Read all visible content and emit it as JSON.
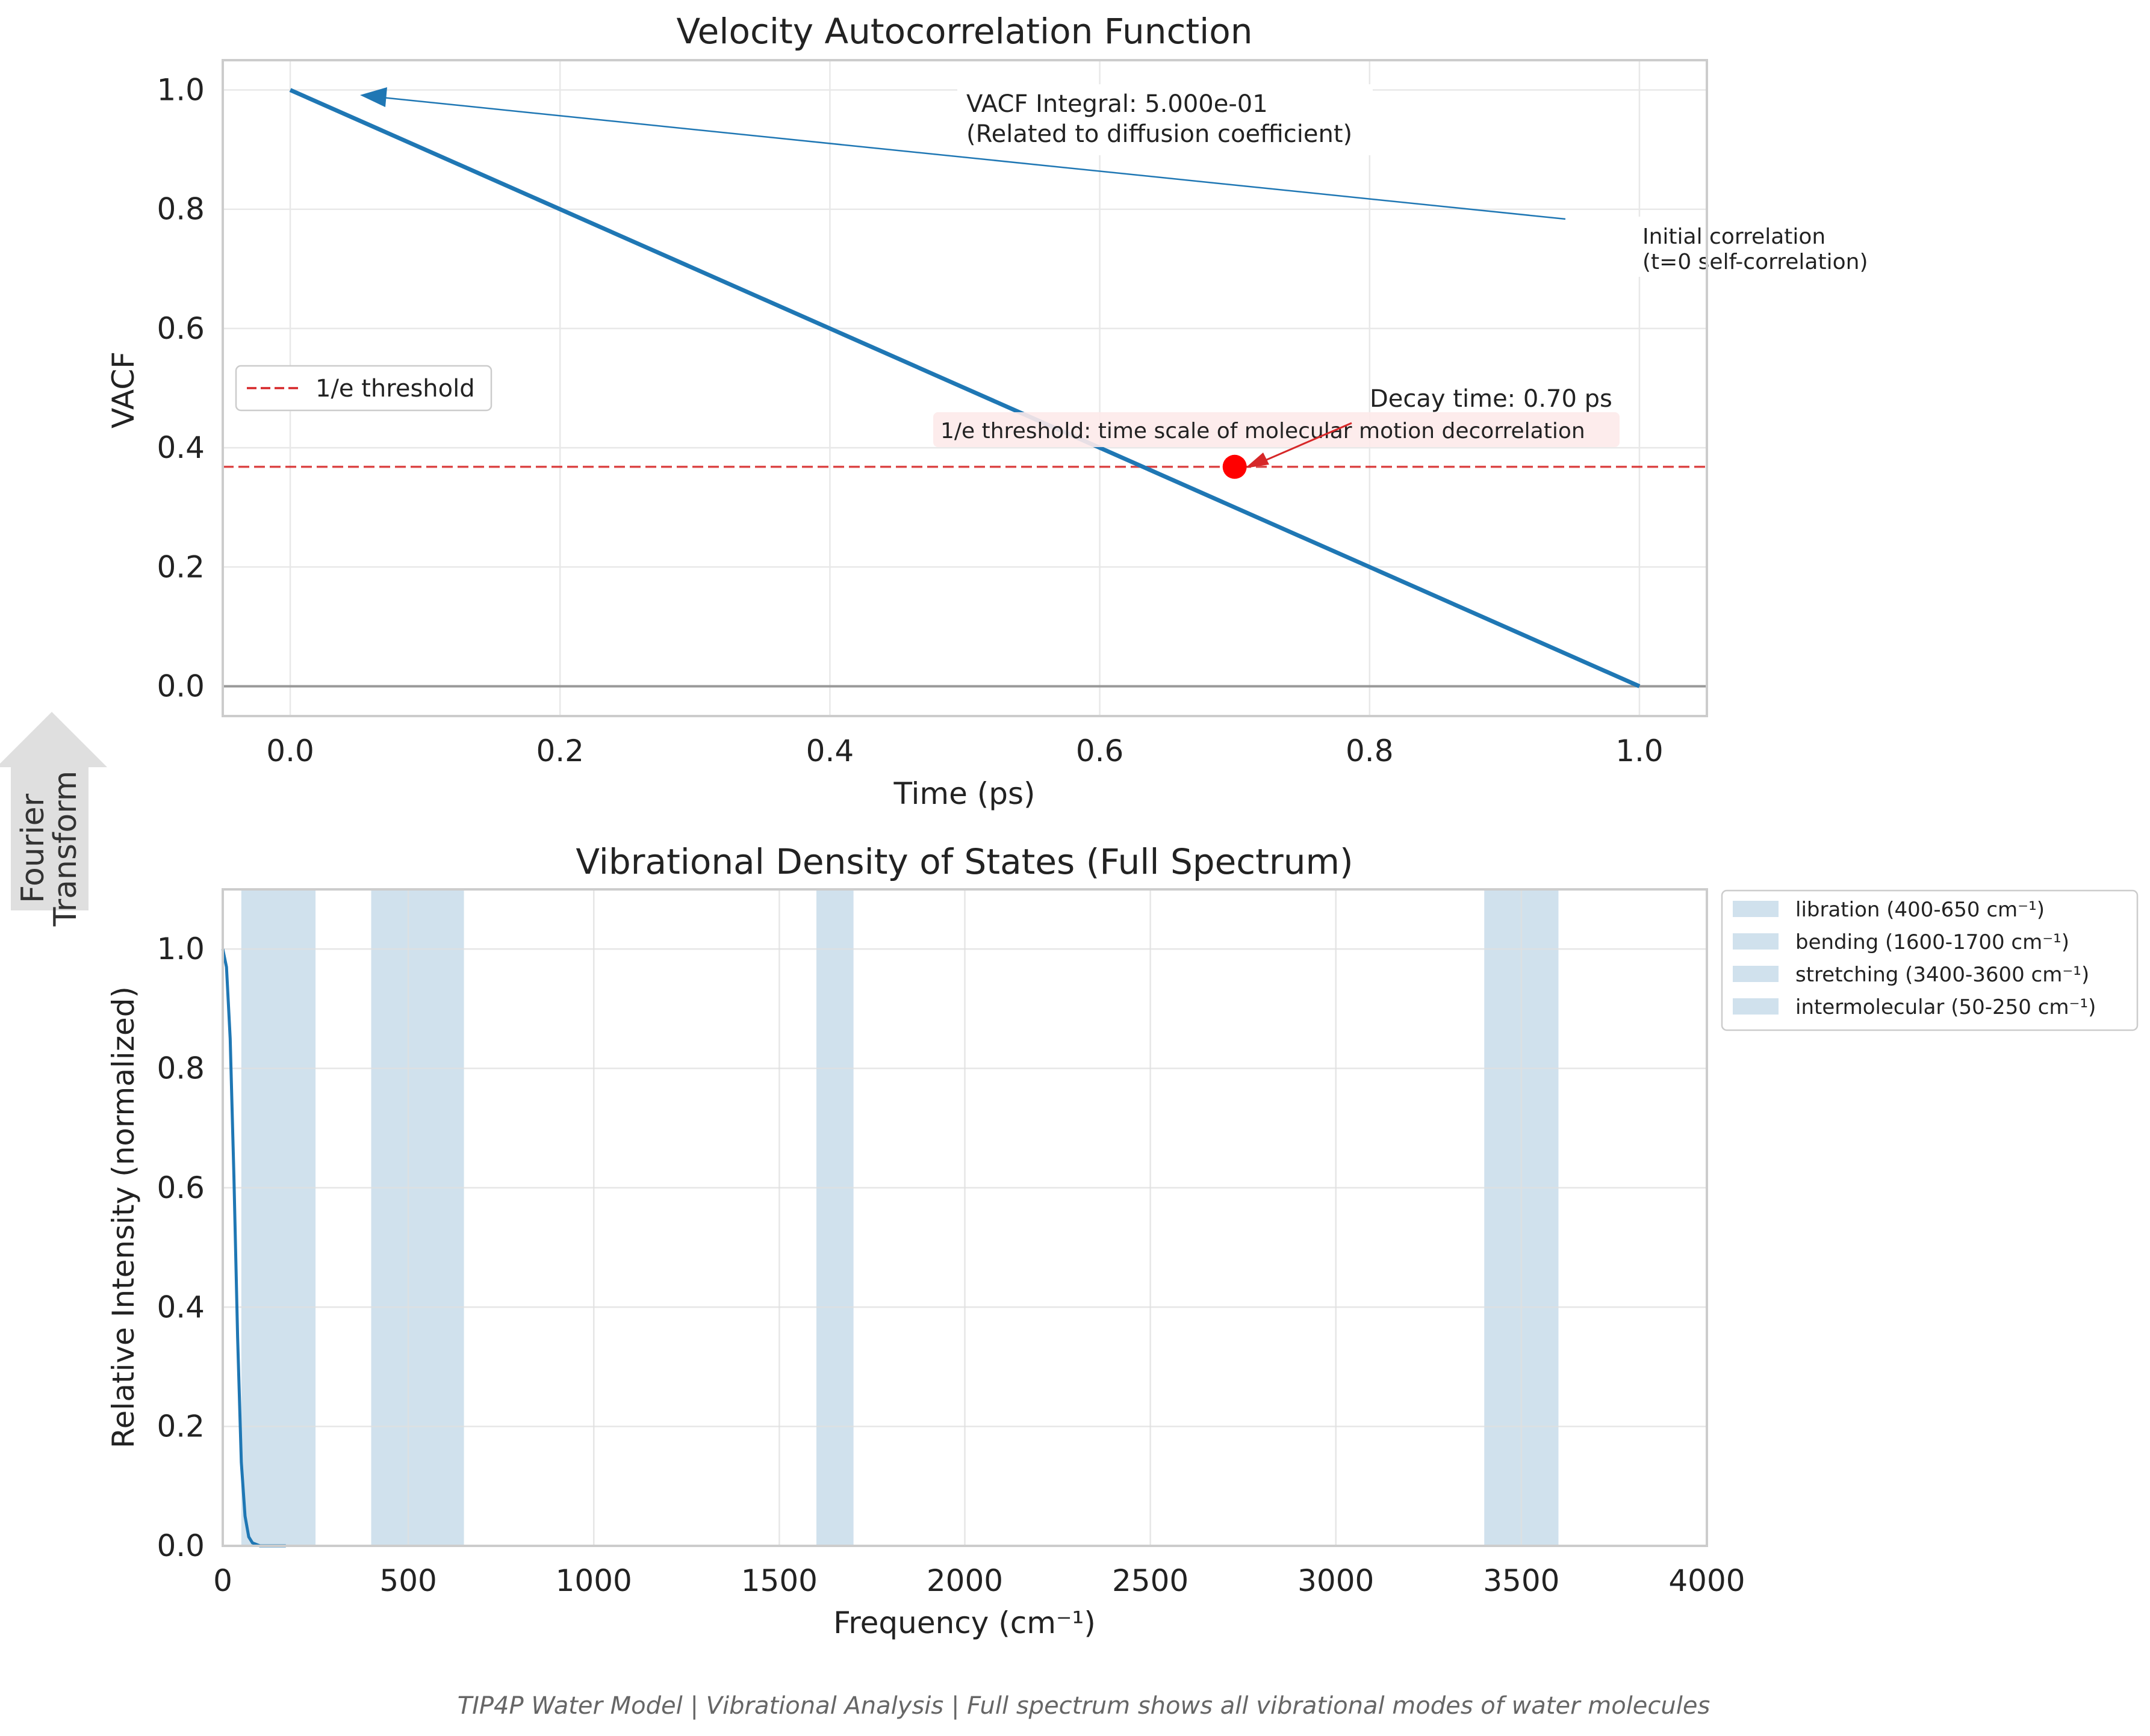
{
  "chart_data": [
    {
      "type": "line",
      "title": "Velocity Autocorrelation Function",
      "xlabel": "Time (ps)",
      "ylabel": "VACF",
      "xlim": [
        -0.05,
        1.05
      ],
      "ylim": [
        -0.05,
        1.05
      ],
      "xticks": [
        "0.0",
        "0.2",
        "0.4",
        "0.6",
        "0.8",
        "1.0"
      ],
      "yticks": [
        "0.0",
        "0.2",
        "0.4",
        "0.6",
        "0.8",
        "1.0"
      ],
      "grid": true,
      "series": [
        {
          "x": [
            0.0,
            1.0
          ],
          "y": [
            1.0,
            0.0
          ],
          "color": "#1f77b4"
        }
      ],
      "threshold": {
        "name": "1/e threshold",
        "y": 0.368,
        "color": "#d62728"
      },
      "decay_point": {
        "x": 0.7,
        "y": 0.368,
        "color": "#ff0000"
      },
      "zero_line": 0,
      "legend": {
        "placement": "center-left",
        "entries": [
          "1/e threshold"
        ]
      },
      "annotations": {
        "integral_line1": "VACF Integral: 5.000e-01",
        "integral_line2": "(Related to diffusion coefficient)",
        "initial_line1": "Initial correlation",
        "initial_line2": "(t=0 self-correlation)",
        "decay": "Decay time: 0.70 ps",
        "threshold_note": "1/e threshold: time scale of molecular motion decorrelation"
      }
    },
    {
      "type": "area",
      "title": "Vibrational Density of States (Full Spectrum)",
      "xlabel": "Frequency (cm⁻¹)",
      "ylabel": "Relative Intensity (normalized)",
      "xlim": [
        0,
        4000
      ],
      "ylim": [
        0,
        1.1
      ],
      "xticks": [
        "0",
        "500",
        "1000",
        "1500",
        "2000",
        "2500",
        "3000",
        "3500",
        "4000"
      ],
      "yticks": [
        "0.0",
        "0.2",
        "0.4",
        "0.6",
        "0.8",
        "1.0"
      ],
      "grid": true,
      "series": [
        {
          "x": [
            0,
            10,
            20,
            30,
            40,
            50,
            60,
            70,
            80,
            100,
            120,
            170
          ],
          "y": [
            1.0,
            0.97,
            0.85,
            0.62,
            0.35,
            0.14,
            0.05,
            0.015,
            0.005,
            0.0,
            0.0,
            0.0
          ],
          "color": "#1f77b4"
        }
      ],
      "bands": [
        {
          "name": "libration (400-650 cm⁻¹)",
          "from": 400,
          "to": 650
        },
        {
          "name": "bending (1600-1700 cm⁻¹)",
          "from": 1600,
          "to": 1700
        },
        {
          "name": "stretching (3400-3600 cm⁻¹)",
          "from": 3400,
          "to": 3600
        },
        {
          "name": "intermolecular (50-250 cm⁻¹)",
          "from": 50,
          "to": 250
        }
      ],
      "band_color": "#a9c9de",
      "legend": {
        "placement": "outside-top-right"
      }
    }
  ],
  "side_arrow": {
    "line1": "Fourier",
    "line2": "Transform"
  },
  "footer": "TIP4P Water Model | Vibrational Analysis | Full spectrum shows all vibrational modes of water molecules"
}
